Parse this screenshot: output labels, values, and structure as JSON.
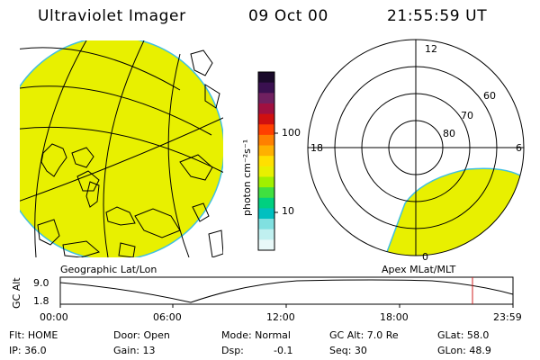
{
  "header": {
    "title": "Ultraviolet Imager",
    "date": "09 Oct 00",
    "time": "21:55:59 UT"
  },
  "map": {
    "label": "Geographic Lat/Lon",
    "fill_color": "#e8f000"
  },
  "colorbar": {
    "unit_label": "photon cm⁻²s⁻¹",
    "scale": "log",
    "ticks": [
      "100",
      "10"
    ],
    "colors": [
      "#1a0a2a",
      "#3a1050",
      "#702060",
      "#a01040",
      "#d01010",
      "#ff4000",
      "#ff8000",
      "#ffb000",
      "#ffe000",
      "#e8f000",
      "#a0f000",
      "#40e040",
      "#00d080",
      "#00c0c0",
      "#80e0e0",
      "#c0f0f0",
      "#e8f8f8"
    ]
  },
  "polar": {
    "label": "Apex MLat/MLT",
    "mlt_labels": [
      "12",
      "18",
      "6",
      "0"
    ],
    "lat_labels": [
      "60",
      "70",
      "80"
    ]
  },
  "timeline": {
    "axis_title": "GC Alt",
    "y_ticks": [
      "9.0",
      "1.8"
    ],
    "x_ticks": [
      "00:00",
      "06:00",
      "12:00",
      "18:00",
      "23:59"
    ],
    "marker_color": "#d02020"
  },
  "info": {
    "row1": {
      "flt": "Flt: HOME",
      "door": "Door: Open",
      "mode": "Mode: Normal",
      "gcalt": "GC Alt: 7.0 Re",
      "glat": "GLat: 58.0"
    },
    "row2": {
      "ip": "IP: 36.0",
      "gain": "Gain: 13",
      "dsp": "Dsp:",
      "dsp_val": "-0.1",
      "seq": "Seq: 30",
      "glon": "GLon: 48.9"
    }
  }
}
